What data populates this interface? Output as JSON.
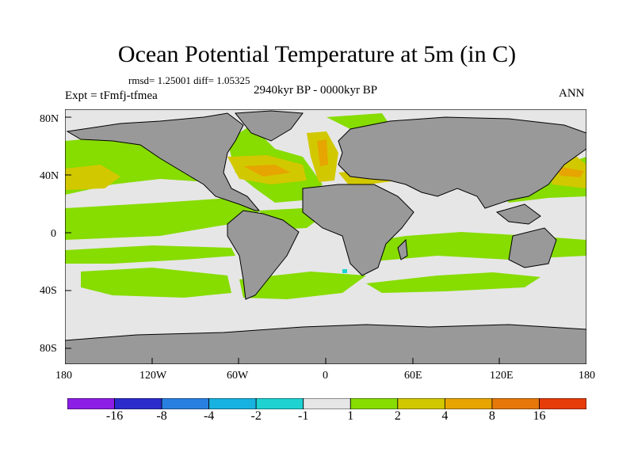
{
  "title": "Ocean Potential Temperature at 5m (in C)",
  "stats": {
    "text": "rmsd= 1.25001  diff= 1.05325",
    "rmsd": 1.25001,
    "diff": 1.05325
  },
  "experiment_label": "Expt = tFmfj-tfmea",
  "period_label": "2940kyr BP - 0000kyr BP",
  "season_label": "ANN",
  "axes": {
    "x_ticks": [
      "180",
      "120W",
      "60W",
      "0",
      "60E",
      "120E",
      "180"
    ],
    "y_ticks": [
      "80N",
      "40N",
      "0",
      "40S",
      "80S"
    ],
    "lon_range": [
      -180,
      180
    ],
    "lat_range": [
      -90,
      90
    ]
  },
  "colorbar": {
    "colors": [
      "#8c1ee6",
      "#2c2ccd",
      "#2a80e0",
      "#17b2e0",
      "#1ed2d2",
      "#e6e6e6",
      "#87dc00",
      "#d2c800",
      "#e6a500",
      "#e6780a",
      "#e63c0a"
    ],
    "labels": [
      "-16",
      "-8",
      "-4",
      "-2",
      "-1",
      "1",
      "2",
      "4",
      "8",
      "16"
    ]
  },
  "map_colors": {
    "land": "#999999",
    "ocean_neutral": "#e6e6e6",
    "warm_1_2": "#87dc00",
    "warm_2_4": "#d2c800",
    "warm_4_8": "#e6a500",
    "cool_1_2": "#1ed2d2"
  }
}
